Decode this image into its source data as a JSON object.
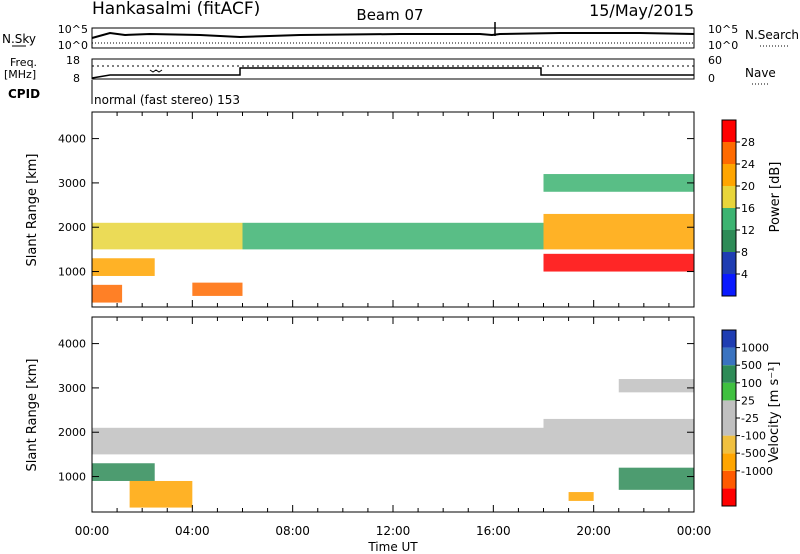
{
  "header": {
    "station": "Hankasalmi (fitACF)",
    "beam": "Beam 07",
    "date": "15/May/2015"
  },
  "top_panel": {
    "left_label": "N.Sky",
    "right_label": "N.Search",
    "left_ticks": [
      "10^5",
      "10^0"
    ],
    "right_ticks": [
      "10^5",
      "10^0"
    ]
  },
  "freq_panel": {
    "left_label_1": "Freq.",
    "left_label_2": "[MHz]",
    "right_label": "Nave",
    "left_ticks": [
      "18",
      "8"
    ],
    "right_ticks": [
      "60",
      "0"
    ]
  },
  "cpid": {
    "label": "CPID",
    "text": "normal (fast stereo) 153"
  },
  "colors": {
    "power": [
      "#0a1aff",
      "#1f3db2",
      "#2e8b57",
      "#3cb371",
      "#e8d53a",
      "#ffa500",
      "#ff6a00",
      "#ff0000"
    ],
    "velocity": [
      "#ff0000",
      "#ff5a00",
      "#ffa500",
      "#f0c040",
      "#c0c0c0",
      "#c0c0c0",
      "#40c040",
      "#2e8b57",
      "#3a73c0",
      "#1f3db2"
    ],
    "ground_scatter": "#c0c0c0"
  },
  "chart_data": [
    {
      "type": "heatmap",
      "name": "power",
      "xlabel": "",
      "ylabel": "Slant Range [km]",
      "ylim": [
        200,
        4600
      ],
      "xlim": [
        0,
        24
      ],
      "y_ticks": [
        "1000",
        "2000",
        "3000",
        "4000"
      ],
      "x_ticks": [
        "00:00",
        "04:00",
        "08:00",
        "12:00",
        "16:00",
        "20:00",
        "00:00"
      ],
      "colorbar_label": "Power [dB]",
      "colorbar_ticks": [
        "4",
        "8",
        "12",
        "16",
        "20",
        "24",
        "28"
      ],
      "colorbar_range": [
        0,
        32
      ],
      "echo_bands": [
        {
          "t0": 0.0,
          "t1": 6.0,
          "r0": 1500,
          "r1": 2100,
          "level": 18
        },
        {
          "t0": 0.0,
          "t1": 2.5,
          "r0": 900,
          "r1": 1300,
          "level": 22
        },
        {
          "t0": 0.0,
          "t1": 1.2,
          "r0": 300,
          "r1": 700,
          "level": 26
        },
        {
          "t0": 4.0,
          "t1": 6.0,
          "r0": 450,
          "r1": 750,
          "level": 24
        },
        {
          "t0": 6.0,
          "t1": 18.0,
          "r0": 1500,
          "r1": 2100,
          "level": 12
        },
        {
          "t0": 18.0,
          "t1": 24.0,
          "r0": 1000,
          "r1": 1400,
          "level": 28
        },
        {
          "t0": 18.0,
          "t1": 24.0,
          "r0": 1500,
          "r1": 2300,
          "level": 20
        },
        {
          "t0": 18.0,
          "t1": 24.0,
          "r0": 2800,
          "r1": 3200,
          "level": 12
        }
      ]
    },
    {
      "type": "heatmap",
      "name": "velocity",
      "xlabel": "Time UT",
      "ylabel": "Slant Range [km]",
      "ylim": [
        200,
        4600
      ],
      "xlim": [
        0,
        24
      ],
      "y_ticks": [
        "1000",
        "2000",
        "3000",
        "4000"
      ],
      "x_ticks": [
        "00:00",
        "04:00",
        "08:00",
        "12:00",
        "16:00",
        "20:00",
        "00:00"
      ],
      "colorbar_label": "Velocity [m s⁻¹]",
      "colorbar_ticks": [
        "1000",
        "500",
        "100",
        "25",
        "-25",
        "-100",
        "-500",
        "-1000"
      ],
      "echo_bands": [
        {
          "t0": 0.0,
          "t1": 6.0,
          "r0": 1500,
          "r1": 2100,
          "velocity": 0
        },
        {
          "t0": 0.0,
          "t1": 2.5,
          "r0": 900,
          "r1": 1300,
          "velocity": 150
        },
        {
          "t0": 1.5,
          "t1": 4.0,
          "r0": 300,
          "r1": 900,
          "velocity": -150
        },
        {
          "t0": 6.0,
          "t1": 18.0,
          "r0": 1500,
          "r1": 2100,
          "velocity": 0
        },
        {
          "t0": 18.0,
          "t1": 24.0,
          "r0": 1500,
          "r1": 2300,
          "velocity": 0
        },
        {
          "t0": 21.0,
          "t1": 24.0,
          "r0": 700,
          "r1": 1200,
          "velocity": 150
        },
        {
          "t0": 19.0,
          "t1": 20.0,
          "r0": 450,
          "r1": 650,
          "velocity": -300
        },
        {
          "t0": 21.0,
          "t1": 24.0,
          "r0": 2900,
          "r1": 3200,
          "velocity": 0
        }
      ]
    }
  ]
}
